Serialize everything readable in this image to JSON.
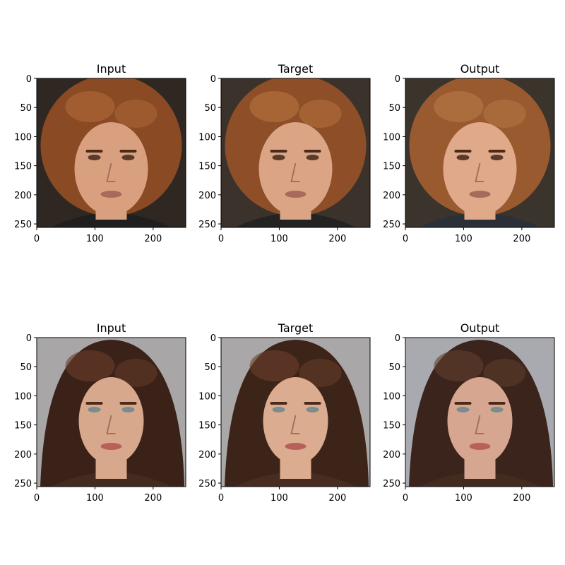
{
  "panels": [
    {
      "title": "Input",
      "xticks": [
        "0",
        "100",
        "200"
      ],
      "yticks": [
        "0",
        "50",
        "100",
        "150",
        "200",
        "250"
      ],
      "image": "older man with long curly auburn hair, dark background, leather jacket",
      "palette": {
        "bg": "#2f2822",
        "hair": "#8a4a24",
        "hairHi": "#b06a38",
        "skin": "#d9a080",
        "cloth": "#1f1f1f"
      }
    },
    {
      "title": "Target",
      "xticks": [
        "0",
        "100",
        "200"
      ],
      "yticks": [
        "0",
        "50",
        "100",
        "150",
        "200",
        "250"
      ],
      "image": "older man with long curly auburn hair, dark background, leather jacket",
      "palette": {
        "bg": "#3a322b",
        "hair": "#8e4e28",
        "hairHi": "#b8743f",
        "skin": "#dba585",
        "cloth": "#232323"
      }
    },
    {
      "title": "Output",
      "xticks": [
        "0",
        "100",
        "200"
      ],
      "yticks": [
        "0",
        "50",
        "100",
        "150",
        "200",
        "250"
      ],
      "image": "reconstructed face of older man with long auburn hair, dark background",
      "palette": {
        "bg": "#3b342d",
        "hair": "#9a5a30",
        "hairHi": "#b87a46",
        "skin": "#e0a98a",
        "cloth": "#2b2f38"
      }
    },
    {
      "title": "Input",
      "xticks": [
        "0",
        "100",
        "200"
      ],
      "yticks": [
        "0",
        "50",
        "100",
        "150",
        "200",
        "250"
      ],
      "image": "young woman with long dark brown hair, light gray background",
      "palette": {
        "bg": "#a9a6a7",
        "hair": "#3a2219",
        "hairHi": "#6a3e2a",
        "skin": "#d8a88c",
        "cloth": "#5a3a2a"
      }
    },
    {
      "title": "Target",
      "xticks": [
        "0",
        "100",
        "200"
      ],
      "yticks": [
        "0",
        "50",
        "100",
        "150",
        "200",
        "250"
      ],
      "image": "young woman with long dark brown hair, light gray background",
      "palette": {
        "bg": "#aaa7a8",
        "hair": "#3c2419",
        "hairHi": "#6c402b",
        "skin": "#dcac90",
        "cloth": "#5c3b2b"
      }
    },
    {
      "title": "Output",
      "xticks": [
        "0",
        "100",
        "200"
      ],
      "yticks": [
        "0",
        "50",
        "100",
        "150",
        "200",
        "250"
      ],
      "image": "reconstructed face of young woman with long dark hair, gray-blue background",
      "palette": {
        "bg": "#a8aab0",
        "hair": "#3b241b",
        "hairHi": "#62402e",
        "skin": "#d6a690",
        "cloth": "#56392c"
      }
    }
  ]
}
